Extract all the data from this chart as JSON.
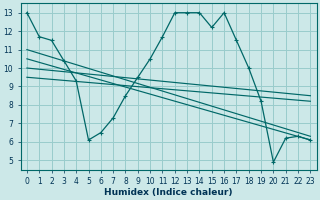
{
  "xlabel": "Humidex (Indice chaleur)",
  "bg_color": "#cce8e8",
  "grid_color": "#99cccc",
  "line_color": "#006868",
  "xlim": [
    -0.5,
    23.5
  ],
  "ylim": [
    4.5,
    13.5
  ],
  "xticks": [
    0,
    1,
    2,
    3,
    4,
    5,
    6,
    7,
    8,
    9,
    10,
    11,
    12,
    13,
    14,
    15,
    16,
    17,
    18,
    19,
    20,
    21,
    22,
    23
  ],
  "yticks": [
    5,
    6,
    7,
    8,
    9,
    10,
    11,
    12,
    13
  ],
  "main_x": [
    0,
    1,
    2,
    3,
    4,
    5,
    6,
    7,
    8,
    9,
    10,
    11,
    12,
    13,
    14,
    15,
    16,
    17,
    18,
    19,
    20,
    21,
    22,
    23
  ],
  "main_y": [
    13.0,
    11.7,
    11.5,
    10.4,
    9.3,
    6.1,
    6.5,
    7.3,
    8.5,
    9.5,
    10.5,
    11.7,
    13.0,
    13.0,
    13.0,
    12.2,
    13.0,
    11.5,
    10.0,
    8.2,
    4.9,
    6.2,
    6.3,
    6.1
  ],
  "diag_lines": [
    {
      "x": [
        0,
        23
      ],
      "y": [
        11.0,
        6.2
      ]
    },
    {
      "x": [
        0,
        23
      ],
      "y": [
        10.5,
        6.0
      ]
    },
    {
      "x": [
        0,
        23
      ],
      "y": [
        10.1,
        8.3
      ]
    },
    {
      "x": [
        0,
        23
      ],
      "y": [
        9.5,
        8.0
      ]
    }
  ]
}
